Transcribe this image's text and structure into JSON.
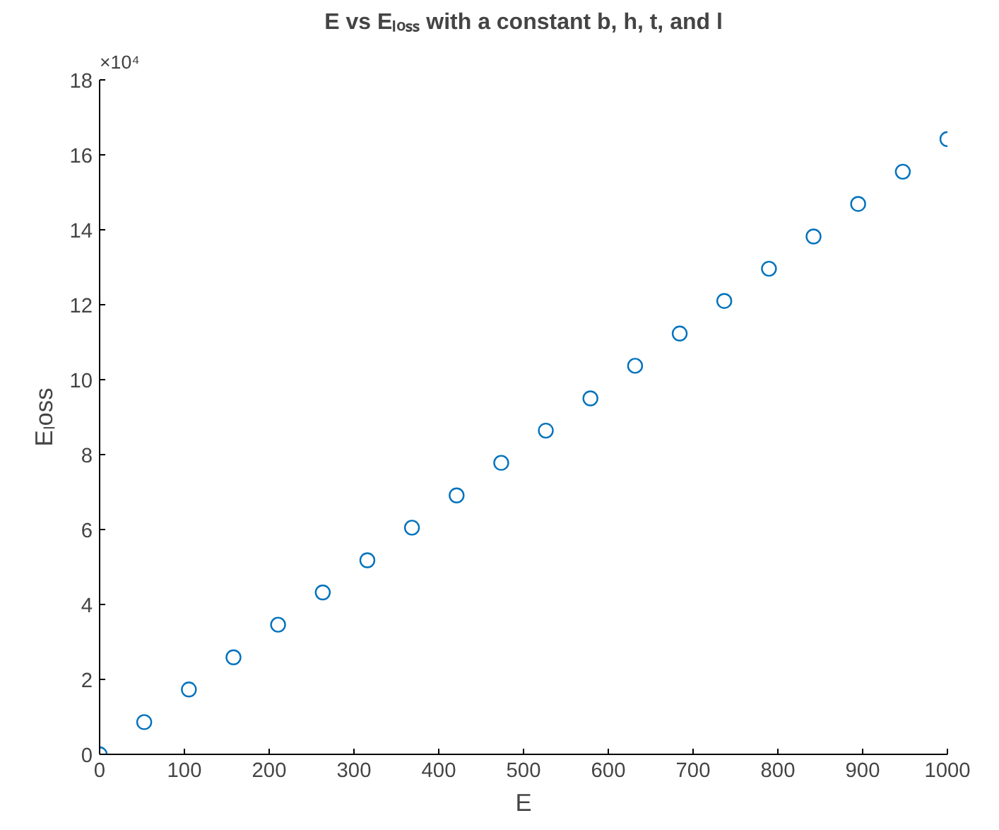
{
  "chart_data": {
    "type": "scatter",
    "title": "E vs Eₗₒₛₛ with a constant b, h, t, and l",
    "xlabel": "E",
    "ylabel": "Eₗoss",
    "x": [
      0,
      52.6,
      105.3,
      157.9,
      210.5,
      263.2,
      315.8,
      368.4,
      421.1,
      473.7,
      526.3,
      578.9,
      631.6,
      684.2,
      736.8,
      789.5,
      842.1,
      894.7,
      947.4,
      1000
    ],
    "series": [
      {
        "color": "#0072bd",
        "values": [
          0,
          0.86,
          1.73,
          2.59,
          3.46,
          4.32,
          5.18,
          6.05,
          6.91,
          7.78,
          8.64,
          9.5,
          10.37,
          11.23,
          12.1,
          12.96,
          13.82,
          14.69,
          15.55,
          16.42
        ]
      }
    ],
    "xlim": [
      0,
      1000
    ],
    "xticks": [
      0,
      100,
      200,
      300,
      400,
      500,
      600,
      700,
      800,
      900,
      1000
    ],
    "ylim": [
      0,
      18
    ],
    "yticks": [
      0,
      2,
      4,
      6,
      8,
      10,
      12,
      14,
      16,
      18
    ],
    "annotations": [
      "×10⁴"
    ],
    "marker": "circle",
    "grid": false
  }
}
